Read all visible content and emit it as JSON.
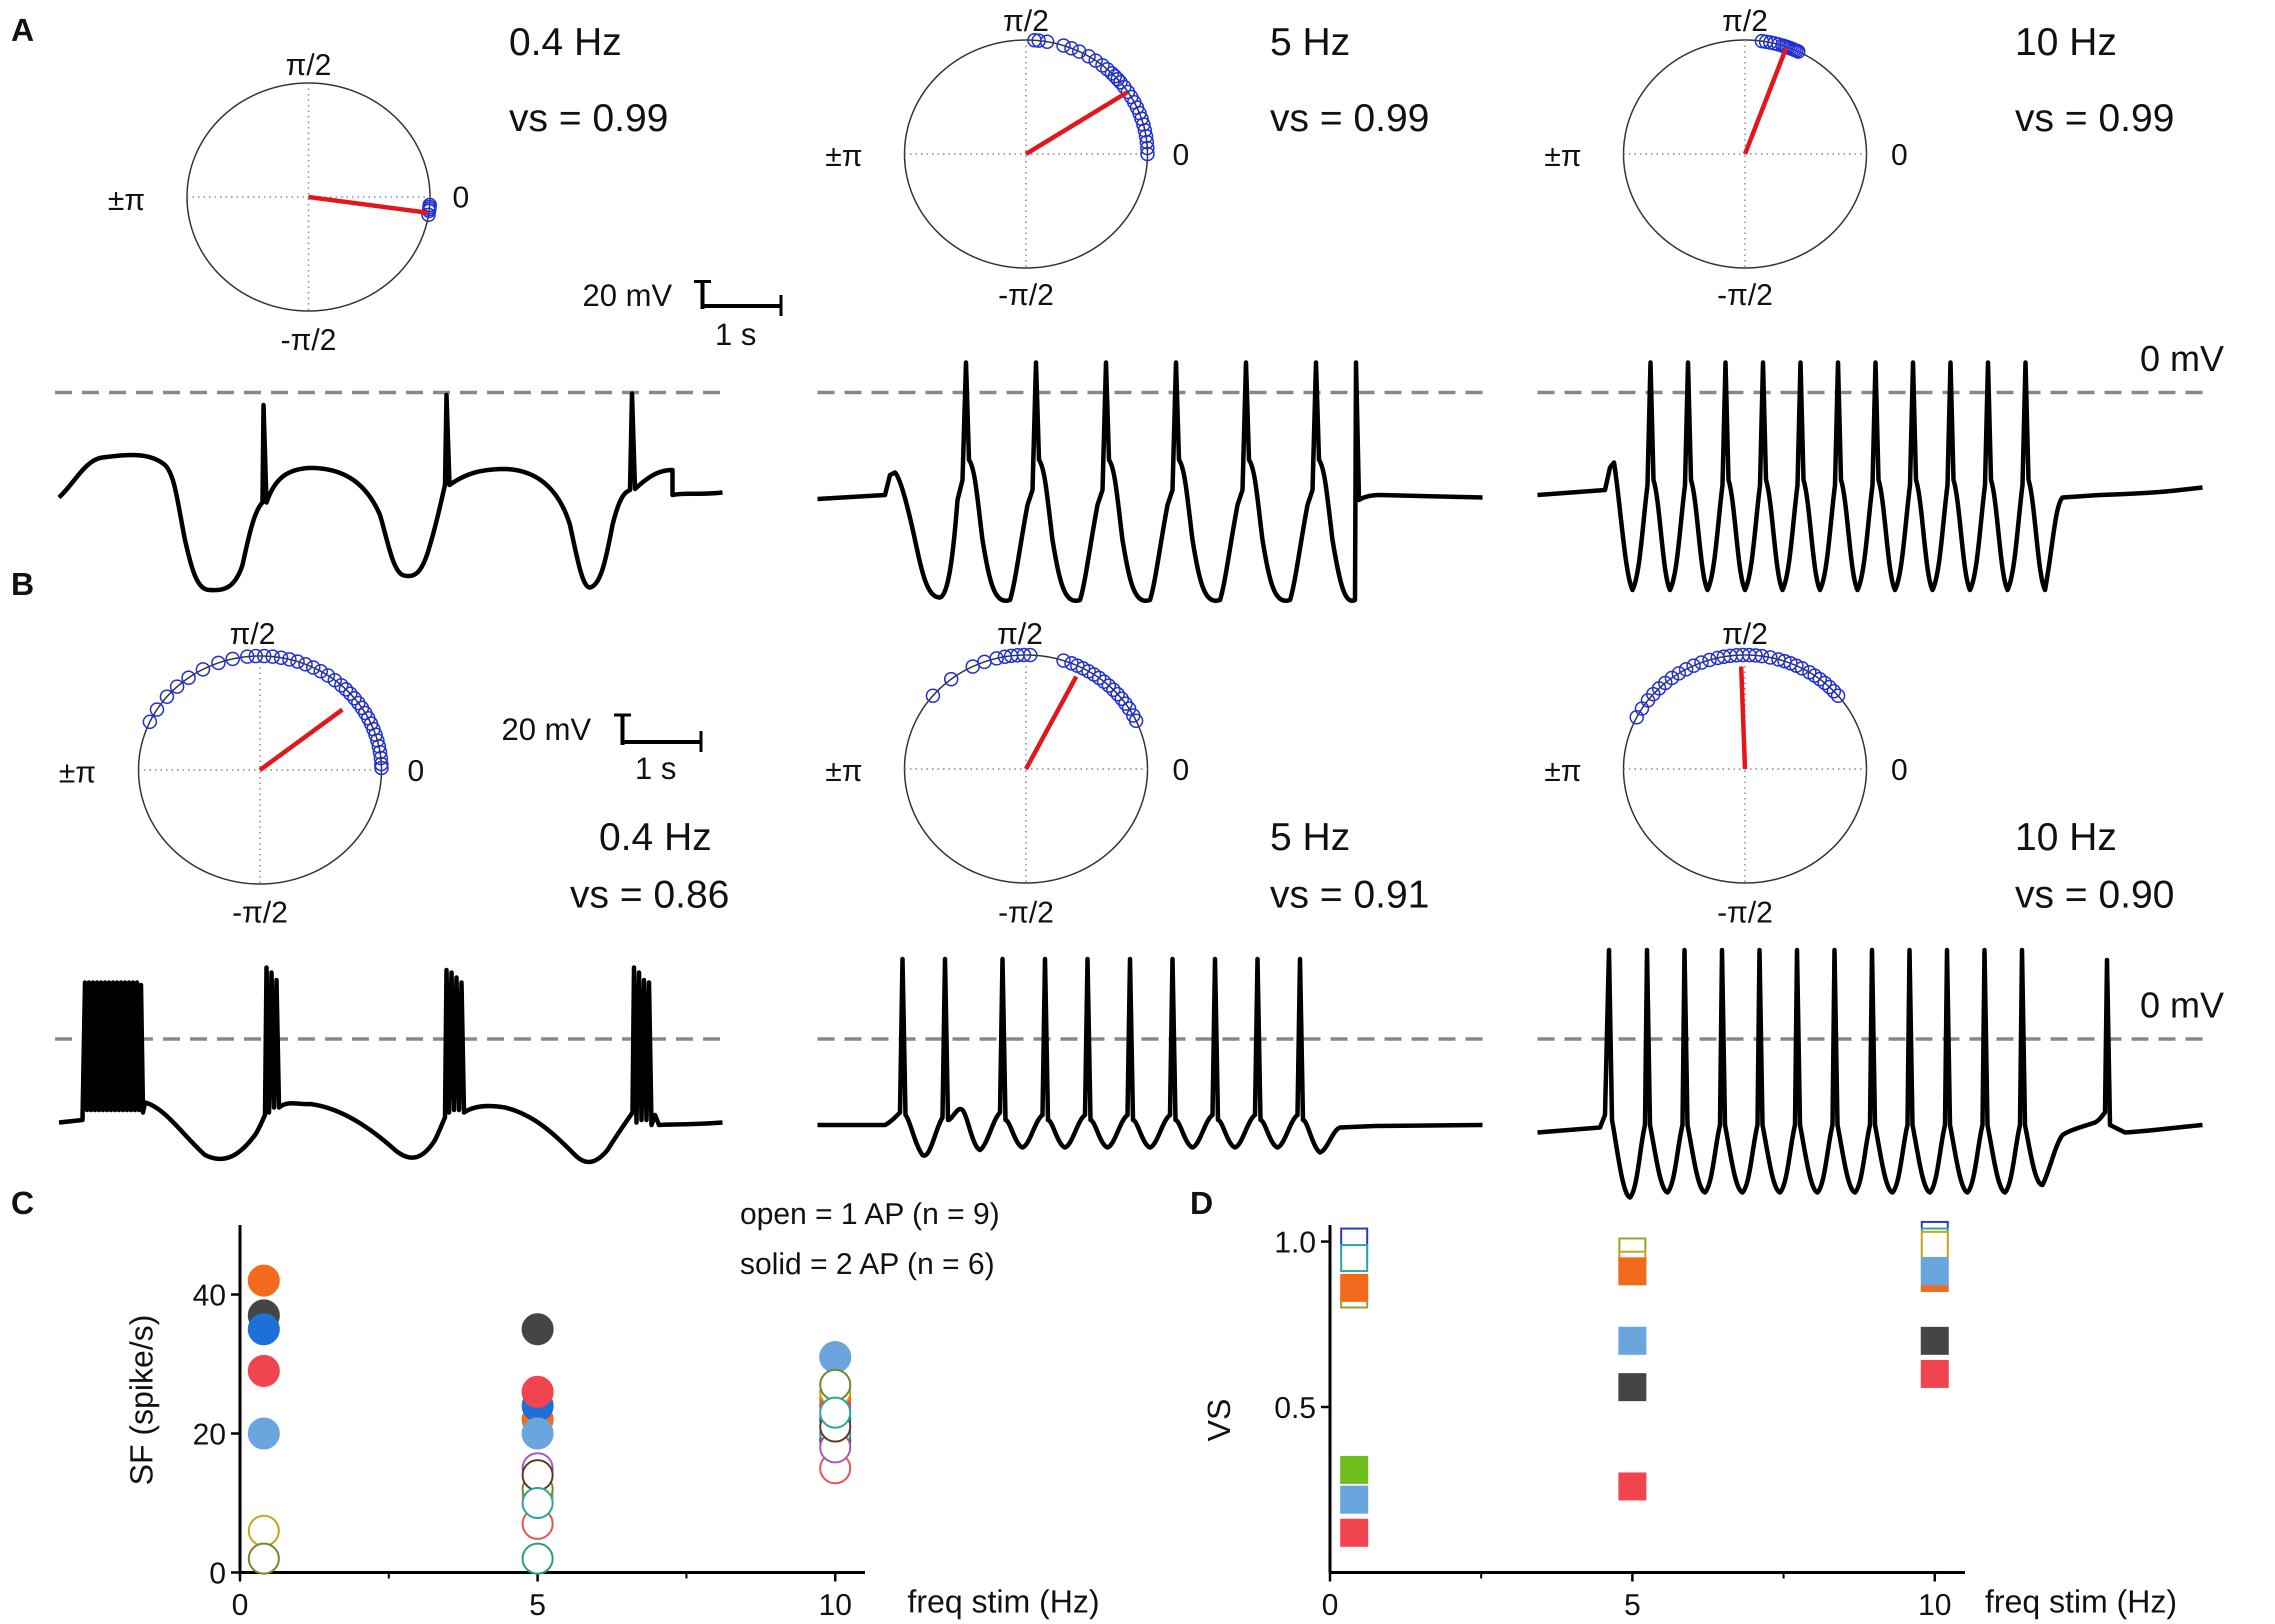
{
  "colors": {
    "trace": "#000000",
    "baseline": "#888888",
    "spike_marker": "#1f2fd0",
    "mean_vector": "#e3161b",
    "axis": "#000000",
    "gridline": "#8a8a8a"
  },
  "panel_labels": [
    "A",
    "B",
    "C",
    "D"
  ],
  "polar_tick_labels": {
    "top": "π/2",
    "right": "0",
    "left": "±π",
    "bottom": "-π/2"
  },
  "zero_mv_label": "0 mV",
  "scale_bar": {
    "voltage": "20 mV",
    "time": "1 s"
  },
  "panel_A": [
    {
      "freq": "0.4 Hz",
      "vs": "vs = 0.99",
      "vector_angle_deg": -8,
      "vector_length": 0.99,
      "spike_phases_deg": [
        -9,
        -7,
        -6,
        -5,
        -4
      ]
    },
    {
      "freq": "5 Hz",
      "vs": "vs = 0.99",
      "vector_angle_deg": 33,
      "vector_length": 0.99,
      "spike_phases_deg": [
        86,
        84,
        80,
        72,
        68,
        64,
        59,
        55,
        51,
        48,
        45,
        43,
        41,
        39,
        36,
        33,
        30,
        27,
        24,
        21,
        18,
        15,
        12,
        9,
        6,
        3,
        0
      ]
    },
    {
      "freq": "10 Hz",
      "vs": "vs = 0.99",
      "vector_angle_deg": 70,
      "vector_length": 0.99,
      "spike_phases_deg": [
        82,
        80,
        78,
        76,
        74,
        72,
        71,
        70,
        69,
        68,
        67,
        66,
        65,
        64
      ]
    }
  ],
  "panel_B": [
    {
      "freq": "0.4 Hz",
      "vs": "vs = 0.86",
      "vector_angle_deg": 38,
      "vector_length": 0.86,
      "spike_phases_deg": [
        155,
        148,
        140,
        133,
        126,
        118,
        110,
        103,
        96,
        92,
        88,
        84,
        80,
        76,
        72,
        68,
        64,
        60,
        56,
        52,
        48,
        45,
        42,
        39,
        36,
        33,
        30,
        27,
        24,
        21,
        18,
        15,
        12,
        9,
        6,
        3,
        1
      ]
    },
    {
      "freq": "5 Hz",
      "vs": "vs = 0.91",
      "vector_angle_deg": 63,
      "vector_length": 0.91,
      "spike_phases_deg": [
        140,
        128,
        116,
        110,
        104,
        100,
        97,
        94,
        91,
        88,
        72,
        68,
        65,
        62,
        59,
        56,
        53,
        50,
        47,
        44,
        41,
        38,
        35,
        32,
        28,
        25
      ]
    },
    {
      "freq": "10 Hz",
      "vs": "vs = 0.90",
      "vector_angle_deg": 92,
      "vector_length": 0.9,
      "spike_phases_deg": [
        153,
        148,
        143,
        139,
        135,
        131,
        127,
        123,
        119,
        115,
        111,
        107,
        103,
        100,
        97,
        94,
        91,
        88,
        85,
        82,
        78,
        74,
        71,
        68,
        65,
        62,
        58,
        55,
        52,
        49,
        46,
        43,
        40
      ]
    }
  ],
  "legend": {
    "open": "open = 1 AP (n = 9)",
    "solid": "solid = 2 AP (n = 6)"
  },
  "chart_data": [
    {
      "type": "scatter",
      "panel": "C",
      "xlabel": "freq stim (Hz)",
      "ylabel": "SF (spike/s)",
      "xlim": [
        0,
        10.5
      ],
      "ylim": [
        0,
        50
      ],
      "xticks": [
        0,
        5,
        10
      ],
      "yticks": [
        0,
        20,
        40
      ],
      "series": [
        {
          "fill": "solid",
          "color": "#f26b1d",
          "points": [
            [
              0.4,
              42
            ],
            [
              5,
              22
            ],
            [
              10,
              25
            ]
          ]
        },
        {
          "fill": "solid",
          "color": "#454545",
          "points": [
            [
              0.4,
              37
            ],
            [
              5,
              35
            ],
            [
              10,
              19
            ]
          ]
        },
        {
          "fill": "solid",
          "color": "#1f6fd8",
          "points": [
            [
              0.4,
              35
            ],
            [
              5,
              24
            ],
            [
              10,
              22
            ]
          ]
        },
        {
          "fill": "solid",
          "color": "#f0454f",
          "points": [
            [
              0.4,
              29
            ],
            [
              5,
              26
            ],
            [
              10,
              24
            ]
          ]
        },
        {
          "fill": "solid",
          "color": "#6aa6dd",
          "points": [
            [
              0.4,
              20
            ],
            [
              5,
              20
            ],
            [
              10,
              31
            ]
          ]
        },
        {
          "fill": "open",
          "color": "#c9a21f",
          "points": [
            [
              0.4,
              6
            ],
            [
              5,
              11
            ],
            [
              10,
              26
            ]
          ]
        },
        {
          "fill": "open",
          "color": "#6d8a2f",
          "points": [
            [
              0.4,
              2
            ],
            [
              5,
              12
            ],
            [
              10,
              27
            ]
          ]
        },
        {
          "fill": "open",
          "color": "#2a9d7a",
          "points": [
            [
              5,
              2
            ],
            [
              10,
              20
            ]
          ]
        },
        {
          "fill": "open",
          "color": "#e9534f",
          "points": [
            [
              5,
              7
            ],
            [
              10,
              15
            ]
          ]
        },
        {
          "fill": "open",
          "color": "#a35bb5",
          "points": [
            [
              5,
              15
            ],
            [
              10,
              18
            ]
          ]
        },
        {
          "fill": "open",
          "color": "#5c3a24",
          "points": [
            [
              5,
              14
            ],
            [
              10,
              21
            ]
          ]
        },
        {
          "fill": "open",
          "color": "#2ba59a",
          "points": [
            [
              5,
              10
            ],
            [
              10,
              23
            ]
          ]
        }
      ]
    },
    {
      "type": "scatter",
      "panel": "D",
      "xlabel": "freq stim (Hz)",
      "ylabel": "VS",
      "xlim": [
        0,
        10.5
      ],
      "ylim": [
        0,
        1.05
      ],
      "xticks": [
        0,
        5,
        10
      ],
      "yticks": [
        0.5,
        1.0
      ],
      "ytick_labels": [
        "0.5",
        "1.0"
      ],
      "series": [
        {
          "fill": "open",
          "color": "#2a37c9",
          "points": [
            [
              0.4,
              1.0
            ],
            [
              10,
              1.02
            ]
          ]
        },
        {
          "fill": "open",
          "color": "#2ba59a",
          "points": [
            [
              0.4,
              0.95
            ],
            [
              10,
              1.0
            ]
          ]
        },
        {
          "fill": "open",
          "color": "#9aa226",
          "points": [
            [
              0.4,
              0.84
            ],
            [
              5,
              0.97
            ],
            [
              10,
              0.98
            ]
          ]
        },
        {
          "fill": "open",
          "color": "#c9a21f",
          "points": [
            [
              5,
              0.93
            ],
            [
              10,
              0.99
            ]
          ]
        },
        {
          "fill": "solid",
          "color": "#f26b1d",
          "points": [
            [
              0.4,
              0.86
            ],
            [
              5,
              0.91
            ],
            [
              10,
              0.89
            ]
          ]
        },
        {
          "fill": "solid",
          "color": "#6aa6dd",
          "points": [
            [
              0.4,
              0.22
            ],
            [
              5,
              0.7
            ],
            [
              10,
              0.91
            ]
          ]
        },
        {
          "fill": "solid",
          "color": "#454545",
          "points": [
            [
              5,
              0.56
            ],
            [
              10,
              0.7
            ]
          ]
        },
        {
          "fill": "solid",
          "color": "#f0454f",
          "points": [
            [
              0.4,
              0.12
            ],
            [
              5,
              0.26
            ],
            [
              10,
              0.6
            ]
          ]
        },
        {
          "fill": "solid",
          "color": "#6fbf1f",
          "points": [
            [
              0.4,
              0.31
            ]
          ]
        }
      ]
    }
  ]
}
